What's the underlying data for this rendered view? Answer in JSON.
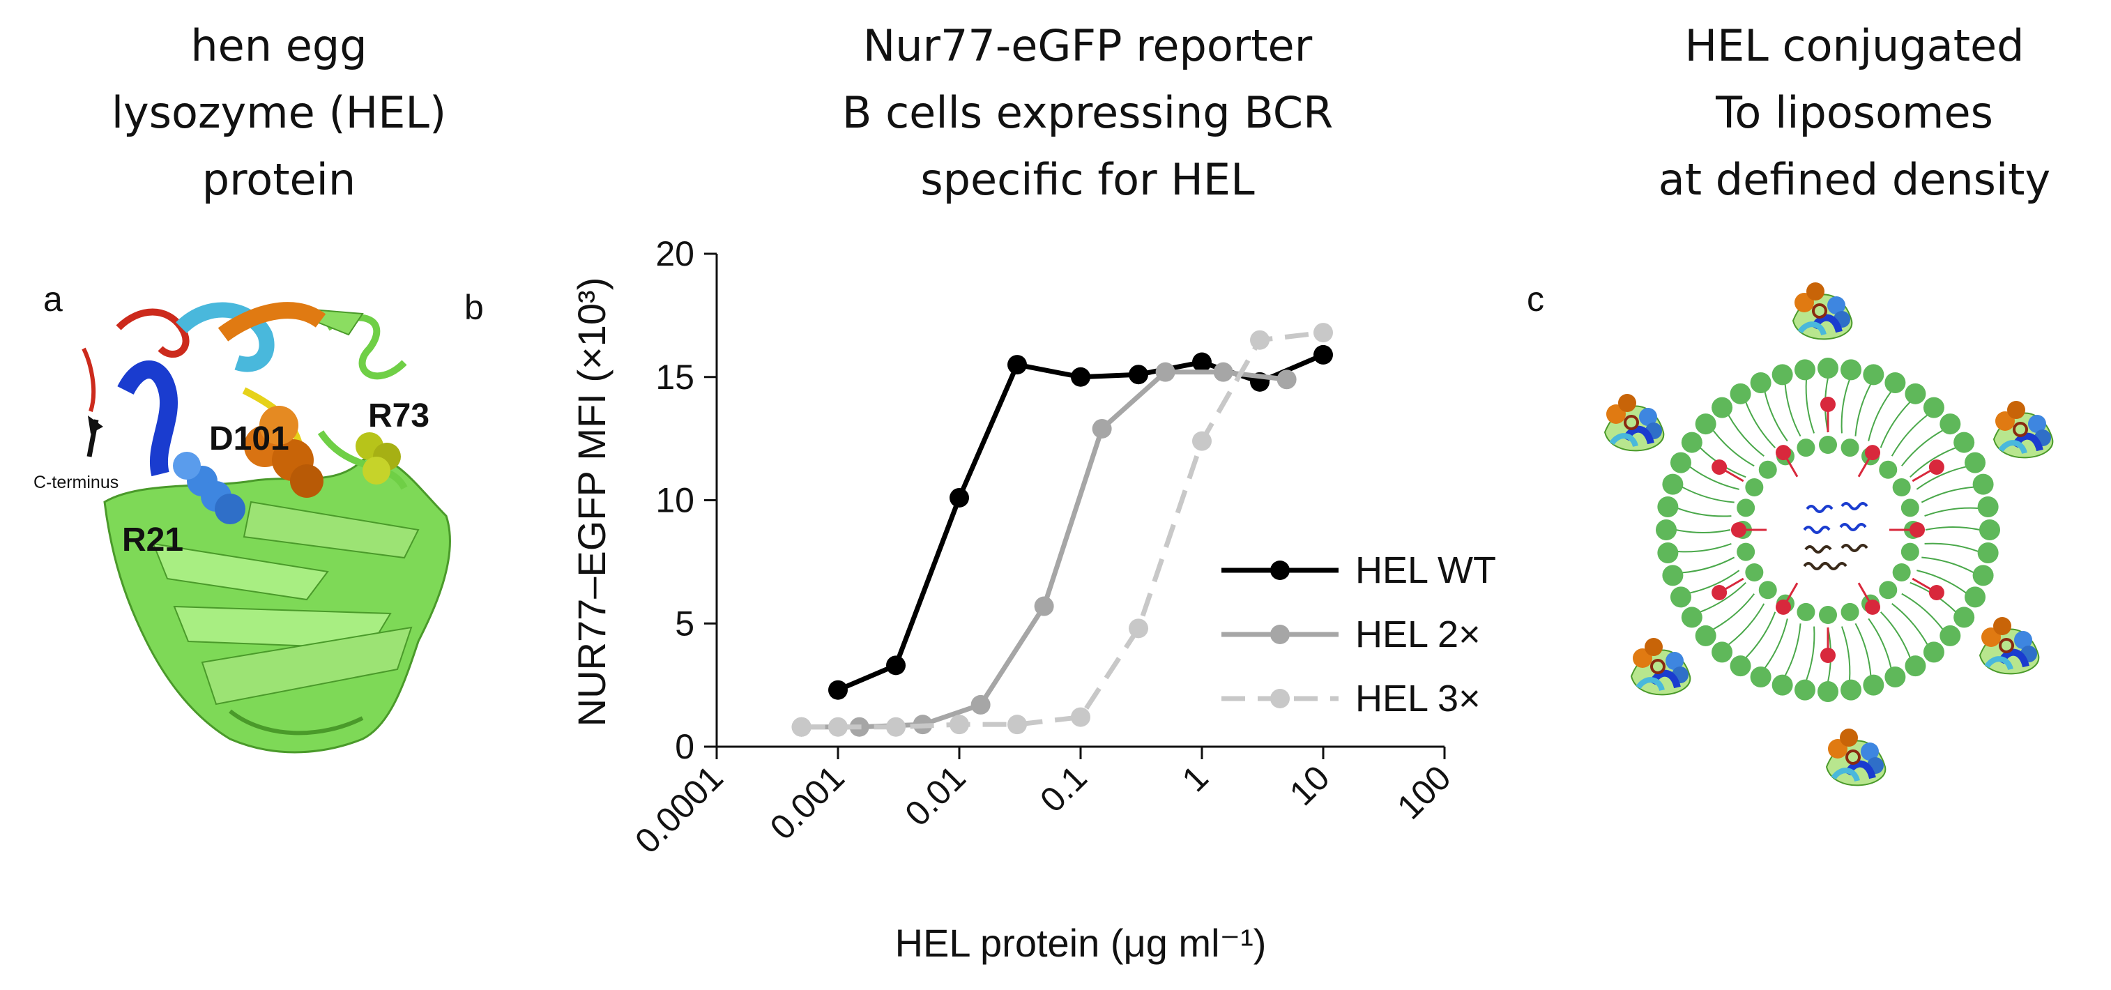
{
  "headings": {
    "left": [
      "hen egg",
      "lysozyme (HEL)",
      "protein"
    ],
    "center": [
      "Nur77-eGFP reporter",
      "B cells expressing BCR",
      "specific for HEL"
    ],
    "right": [
      "HEL conjugated",
      "To liposomes",
      "at defined density"
    ]
  },
  "panels": {
    "a": {
      "letter": "a",
      "residue_labels": [
        "D101",
        "R73",
        "R21"
      ],
      "annotation": "C-terminus"
    },
    "b": {
      "letter": "b"
    },
    "c": {
      "letter": "c"
    }
  },
  "colors": {
    "wt": "#000000",
    "x2": "#a6a6a6",
    "x3": "#c8c8c8",
    "sheet_green": "#77d64a",
    "lipid_head": "#5fb85a",
    "linker_red": "#d8283c",
    "helix_blue": "#1a3ccf",
    "helix_cyan": "#49b8dc",
    "helix_orange": "#e07a12"
  },
  "chart_data": {
    "type": "line",
    "title": "",
    "xlabel": "HEL protein (μg ml⁻¹)",
    "ylabel": "NUR77–EGFP MFI (×10³)",
    "xscale": "log",
    "xlim": [
      0.0001,
      100
    ],
    "ylim": [
      0,
      20
    ],
    "xticks": [
      "0.0001",
      "0.001",
      "0.01",
      "0.1",
      "1",
      "10",
      "100"
    ],
    "yticks": [
      "0",
      "5",
      "10",
      "15",
      "20"
    ],
    "grid": false,
    "legend": "lower-right",
    "series": [
      {
        "name": "HEL WT",
        "style": "solid",
        "color": "#000000",
        "x": [
          0.001,
          0.003,
          0.01,
          0.03,
          0.1,
          0.3,
          1,
          3,
          10
        ],
        "y": [
          2.3,
          3.3,
          10.1,
          15.5,
          15.0,
          15.1,
          15.6,
          14.8,
          15.9
        ]
      },
      {
        "name": "HEL 2×",
        "style": "solid",
        "color": "#a6a6a6",
        "x": [
          0.0005,
          0.0015,
          0.005,
          0.015,
          0.05,
          0.15,
          0.5,
          1.5,
          5
        ],
        "y": [
          0.8,
          0.8,
          0.9,
          1.7,
          5.7,
          12.9,
          15.2,
          15.2,
          14.9
        ]
      },
      {
        "name": "HEL 3×",
        "style": "dashed",
        "color": "#c8c8c8",
        "x": [
          0.0005,
          0.001,
          0.003,
          0.01,
          0.03,
          0.1,
          0.3,
          1,
          3,
          10
        ],
        "y": [
          0.8,
          0.8,
          0.8,
          0.9,
          0.9,
          1.2,
          4.8,
          12.4,
          16.5,
          16.8
        ]
      }
    ]
  }
}
